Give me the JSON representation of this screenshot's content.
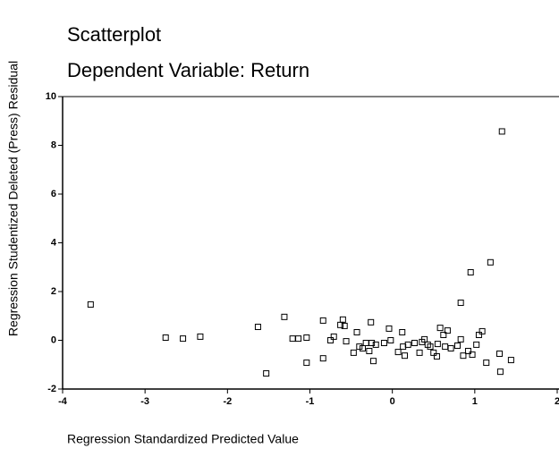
{
  "chart_data": {
    "type": "scatter",
    "title": "Scatterplot",
    "subtitle": "Dependent Variable: Return",
    "x_label": "Regression Standardized Predicted Value",
    "y_label": "Regression Studentized Deleted (Press) Residual",
    "xlim": [
      -4,
      2
    ],
    "ylim": [
      -2,
      10
    ],
    "xticks": [
      -4,
      -3,
      -2,
      -1,
      0,
      1,
      2
    ],
    "yticks": [
      -2,
      0,
      2,
      4,
      6,
      8,
      10
    ],
    "series": [
      {
        "color": "#000000",
        "x": [
          -3.66,
          -2.75,
          -2.54,
          -2.33,
          -1.63,
          -1.53,
          -1.31,
          -1.21,
          -1.14,
          -1.04,
          -1.04,
          -0.84,
          -0.84,
          -0.75,
          -0.71,
          -0.63,
          -0.6,
          -0.58,
          -0.56,
          -0.47,
          -0.43,
          -0.4,
          -0.36,
          -0.32,
          -0.28,
          -0.26,
          -0.25,
          -0.23,
          -0.2,
          -0.1,
          -0.04,
          -0.02,
          0.07,
          0.12,
          0.13,
          0.15,
          0.19,
          0.27,
          0.33,
          0.36,
          0.39,
          0.43,
          0.46,
          0.5,
          0.54,
          0.55,
          0.58,
          0.62,
          0.64,
          0.67,
          0.71,
          0.79,
          0.83,
          0.83,
          0.86,
          0.92,
          0.95,
          0.97,
          1.02,
          1.05,
          1.09,
          1.14,
          1.19,
          1.3,
          1.31,
          1.33,
          1.44
        ],
        "values": [
          1.47,
          0.11,
          0.07,
          0.15,
          0.55,
          -1.36,
          0.96,
          0.07,
          0.07,
          -0.92,
          0.11,
          0.81,
          -0.74,
          0,
          0.15,
          0.63,
          0.85,
          0.59,
          -0.04,
          -0.51,
          0.33,
          -0.26,
          -0.33,
          -0.11,
          -0.44,
          0.74,
          -0.11,
          -0.85,
          -0.18,
          -0.11,
          0.48,
          0,
          -0.48,
          0.33,
          -0.26,
          -0.63,
          -0.18,
          -0.11,
          -0.51,
          -0.07,
          0.04,
          -0.18,
          -0.26,
          -0.51,
          -0.66,
          -0.15,
          0.51,
          0.22,
          -0.26,
          0.4,
          -0.33,
          -0.22,
          0.04,
          1.54,
          -0.63,
          -0.44,
          2.79,
          -0.59,
          -0.18,
          0.22,
          0.37,
          -0.92,
          3.2,
          -0.55,
          -1.29,
          8.57,
          -0.81
        ]
      }
    ]
  }
}
